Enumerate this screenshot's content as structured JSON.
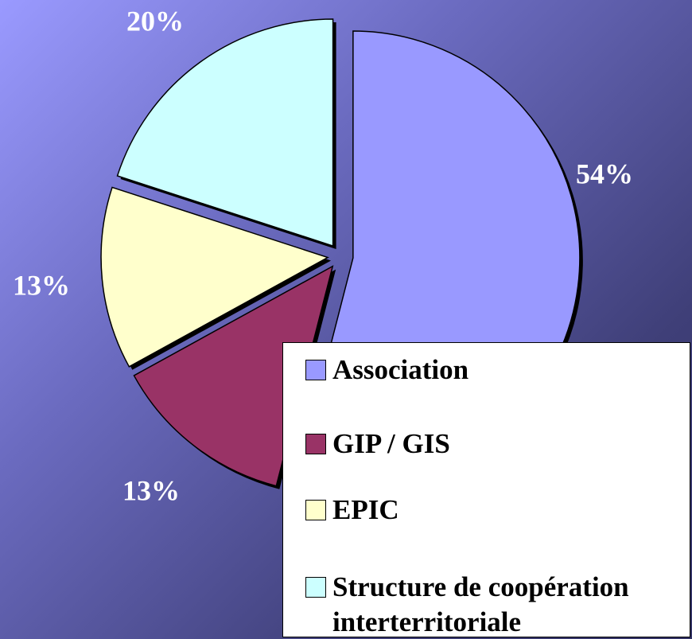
{
  "chart_data": {
    "type": "pie",
    "categories": [
      "Association",
      "GIP / GIS",
      "EPIC",
      "Structure de coopération interterritoriale"
    ],
    "values": [
      54,
      13,
      13,
      20
    ],
    "value_labels": [
      "54%",
      "13%",
      "13%",
      "20%"
    ],
    "colors": [
      "#9999ff",
      "#993366",
      "#ffffcc",
      "#ccffff"
    ],
    "legend": "bottom-right"
  }
}
